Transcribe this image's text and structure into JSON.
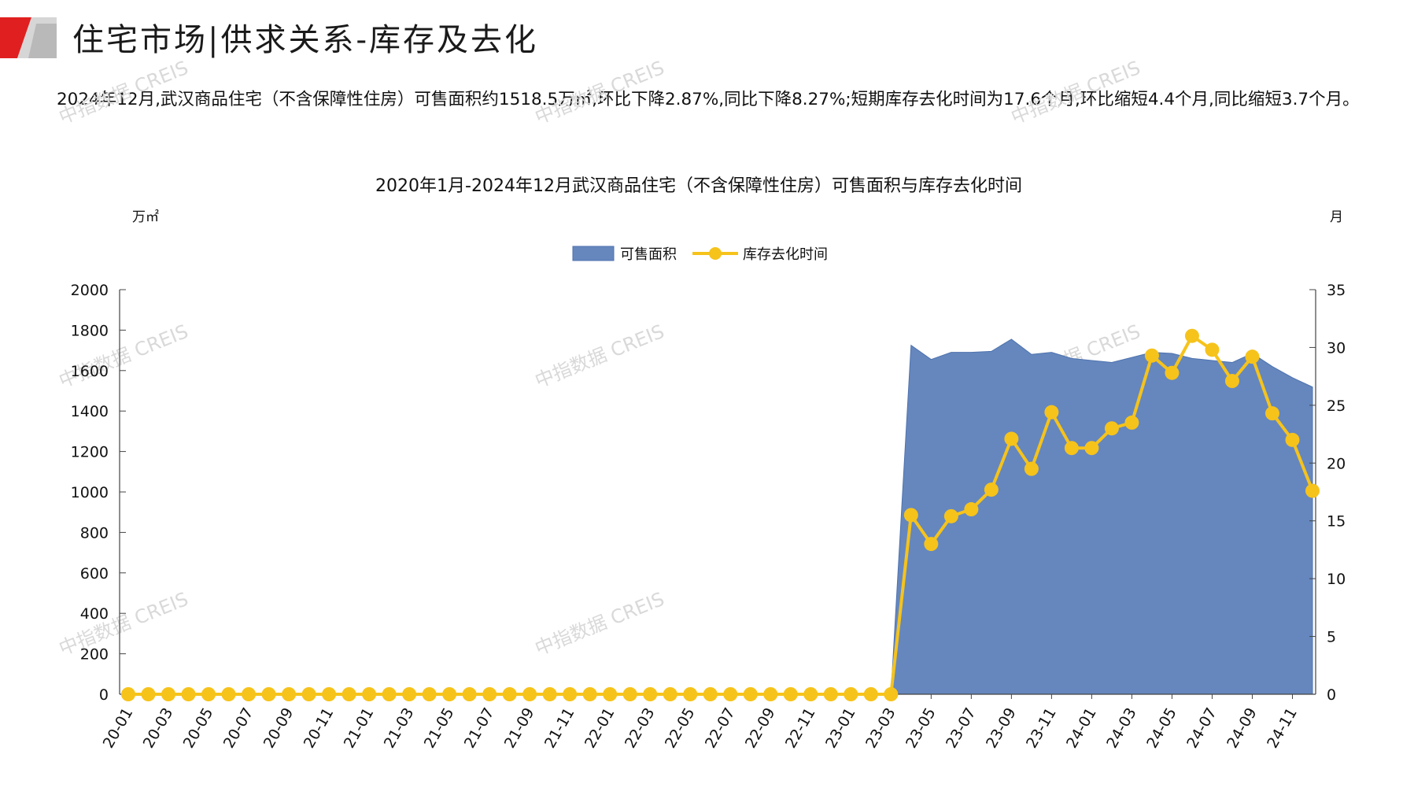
{
  "header": {
    "title": "住宅市场|供求关系-库存及去化"
  },
  "summary": {
    "text": "2024年12月,武汉商品住宅（不含保障性住房）可售面积约1518.5万㎡,环比下降2.87%,同比下降8.27%;短期库存去化时间为17.6个月,环比缩短4.4个月,同比缩短3.7个月。"
  },
  "watermark": {
    "text": "中指数据 CREIS"
  },
  "colors": {
    "area": "#6587be",
    "area_stroke": "#4e72ad",
    "line": "#f6c31b",
    "axis": "#444444",
    "logo_red": "#e02020",
    "logo_gray": "#c8c8c8"
  },
  "chart_data": {
    "type": "area+line",
    "title": "2020年1月-2024年12月武汉商品住宅（不含保障性住房）可售面积与库存去化时间",
    "y_left_unit": "万㎡",
    "y_right_unit": "月",
    "legend": [
      "可售面积",
      "库存去化时间"
    ],
    "legend_position": "top-center",
    "ylim_left": [
      0,
      2000
    ],
    "ylim_right": [
      0,
      35
    ],
    "y_left_ticks": [
      0,
      200,
      400,
      600,
      800,
      1000,
      1200,
      1400,
      1600,
      1800,
      2000
    ],
    "y_right_ticks": [
      0,
      5,
      10,
      15,
      20,
      25,
      30,
      35
    ],
    "x_tick_labels": [
      "20-01",
      "20-03",
      "20-05",
      "20-07",
      "20-09",
      "20-11",
      "21-01",
      "21-03",
      "21-05",
      "21-07",
      "21-09",
      "21-11",
      "22-01",
      "22-03",
      "22-05",
      "22-07",
      "22-09",
      "22-11",
      "23-01",
      "23-03",
      "23-05",
      "23-07",
      "23-09",
      "23-11",
      "24-01",
      "24-03",
      "24-05",
      "24-07",
      "24-09",
      "24-11"
    ],
    "x": [
      "20-01",
      "20-02",
      "20-03",
      "20-04",
      "20-05",
      "20-06",
      "20-07",
      "20-08",
      "20-09",
      "20-10",
      "20-11",
      "20-12",
      "21-01",
      "21-02",
      "21-03",
      "21-04",
      "21-05",
      "21-06",
      "21-07",
      "21-08",
      "21-09",
      "21-10",
      "21-11",
      "21-12",
      "22-01",
      "22-02",
      "22-03",
      "22-04",
      "22-05",
      "22-06",
      "22-07",
      "22-08",
      "22-09",
      "22-10",
      "22-11",
      "22-12",
      "23-01",
      "23-02",
      "23-03",
      "23-04",
      "23-05",
      "23-06",
      "23-07",
      "23-08",
      "23-09",
      "23-10",
      "23-11",
      "23-12",
      "24-01",
      "24-02",
      "24-03",
      "24-04",
      "24-05",
      "24-06",
      "24-07",
      "24-08",
      "24-09",
      "24-10",
      "24-11",
      "24-12"
    ],
    "series": [
      {
        "name": "可售面积",
        "type": "area",
        "axis": "left",
        "values": [
          0,
          0,
          0,
          0,
          0,
          0,
          0,
          0,
          0,
          0,
          0,
          0,
          0,
          0,
          0,
          0,
          0,
          0,
          0,
          0,
          0,
          0,
          0,
          0,
          0,
          0,
          0,
          0,
          0,
          0,
          0,
          0,
          0,
          0,
          0,
          0,
          0,
          0,
          0,
          1725,
          1655,
          1690,
          1690,
          1695,
          1755,
          1680,
          1690,
          1660,
          1650,
          1640,
          1665,
          1690,
          1685,
          1660,
          1650,
          1640,
          1685,
          1620,
          1565,
          1518.5
        ]
      },
      {
        "name": "库存去化时间",
        "type": "line",
        "axis": "right",
        "values": [
          0,
          0,
          0,
          0,
          0,
          0,
          0,
          0,
          0,
          0,
          0,
          0,
          0,
          0,
          0,
          0,
          0,
          0,
          0,
          0,
          0,
          0,
          0,
          0,
          0,
          0,
          0,
          0,
          0,
          0,
          0,
          0,
          0,
          0,
          0,
          0,
          0,
          0,
          0,
          15.5,
          13.0,
          15.4,
          16.0,
          17.7,
          22.1,
          19.5,
          24.4,
          21.3,
          21.3,
          23.0,
          23.5,
          29.3,
          27.8,
          31.0,
          29.8,
          27.1,
          29.2,
          24.3,
          22.0,
          17.6
        ]
      }
    ]
  }
}
